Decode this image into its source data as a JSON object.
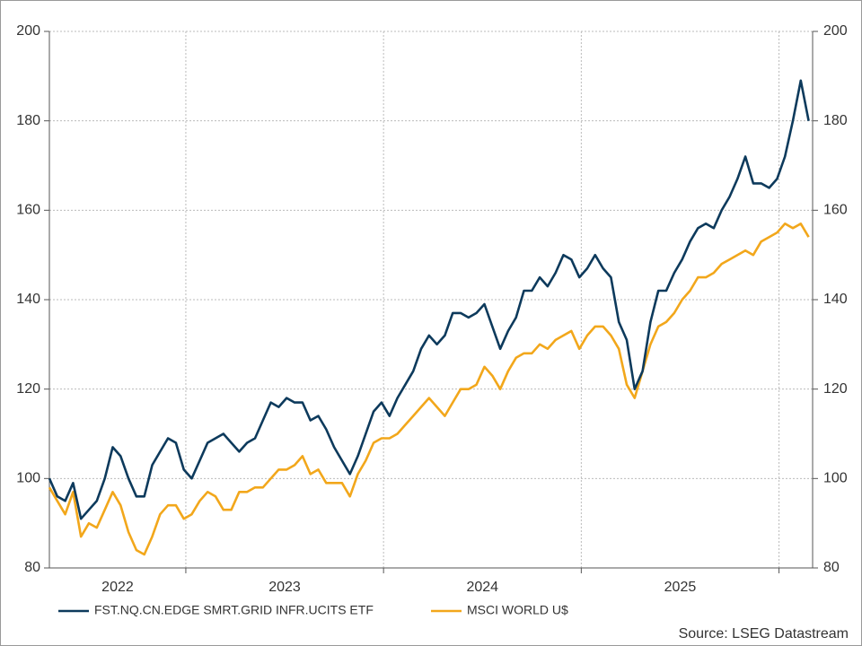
{
  "chart_data": {
    "type": "line",
    "x": [
      2022.31,
      2022.35,
      2022.39,
      2022.43,
      2022.47,
      2022.51,
      2022.55,
      2022.59,
      2022.63,
      2022.67,
      2022.71,
      2022.75,
      2022.79,
      2022.83,
      2022.87,
      2022.91,
      2022.95,
      2022.99,
      2023.03,
      2023.07,
      2023.11,
      2023.15,
      2023.19,
      2023.23,
      2023.27,
      2023.31,
      2023.35,
      2023.39,
      2023.43,
      2023.47,
      2023.51,
      2023.55,
      2023.59,
      2023.63,
      2023.67,
      2023.71,
      2023.75,
      2023.79,
      2023.83,
      2023.87,
      2023.91,
      2023.95,
      2023.99,
      2024.03,
      2024.07,
      2024.11,
      2024.15,
      2024.19,
      2024.23,
      2024.27,
      2024.31,
      2024.35,
      2024.39,
      2024.43,
      2024.47,
      2024.51,
      2024.55,
      2024.59,
      2024.63,
      2024.67,
      2024.71,
      2024.75,
      2024.79,
      2024.83,
      2024.87,
      2024.91,
      2024.95,
      2024.99,
      2025.03,
      2025.07,
      2025.11,
      2025.15,
      2025.19,
      2025.23,
      2025.27,
      2025.31,
      2025.35,
      2025.39,
      2025.43,
      2025.47,
      2025.51,
      2025.55,
      2025.59,
      2025.63,
      2025.67,
      2025.71,
      2025.75,
      2025.79,
      2025.83,
      2025.87,
      2025.91,
      2025.95,
      2025.99,
      2026.03,
      2026.07,
      2026.11,
      2026.15
    ],
    "series": [
      {
        "name": "FST.NQ.CN.EDGE SMRT.GRID INFR.UCITS ETF",
        "color": "#0d3a5c",
        "values": [
          100,
          96,
          95,
          99,
          91,
          93,
          95,
          100,
          107,
          105,
          100,
          96,
          96,
          103,
          106,
          109,
          108,
          102,
          100,
          104,
          108,
          109,
          110,
          108,
          106,
          108,
          109,
          113,
          117,
          116,
          118,
          117,
          117,
          113,
          114,
          111,
          107,
          104,
          101,
          105,
          110,
          115,
          117,
          114,
          118,
          121,
          124,
          129,
          132,
          130,
          132,
          137,
          137,
          136,
          137,
          139,
          134,
          129,
          133,
          136,
          142,
          142,
          145,
          143,
          146,
          150,
          149,
          145,
          147,
          150,
          147,
          145,
          135,
          131,
          120,
          124,
          135,
          142,
          142,
          146,
          149,
          153,
          156,
          157,
          156,
          160,
          163,
          167,
          172,
          166,
          166,
          165,
          167,
          172,
          180,
          189,
          180
        ]
      },
      {
        "name": "MSCI WORLD U$",
        "color": "#f2a71b",
        "values": [
          98,
          95,
          92,
          97,
          87,
          90,
          89,
          93,
          97,
          94,
          88,
          84,
          83,
          87,
          92,
          94,
          94,
          91,
          92,
          95,
          97,
          96,
          93,
          93,
          97,
          97,
          98,
          98,
          100,
          102,
          102,
          103,
          105,
          101,
          102,
          99,
          99,
          99,
          96,
          101,
          104,
          108,
          109,
          109,
          110,
          112,
          114,
          116,
          118,
          116,
          114,
          117,
          120,
          120,
          121,
          125,
          123,
          120,
          124,
          127,
          128,
          128,
          130,
          129,
          131,
          132,
          133,
          129,
          132,
          134,
          134,
          132,
          129,
          121,
          118,
          124,
          130,
          134,
          135,
          137,
          140,
          142,
          145,
          145,
          146,
          148,
          149,
          150,
          151,
          150,
          153,
          154,
          155,
          157,
          156,
          157,
          154
        ]
      }
    ],
    "xlim": [
      2022.31,
      2026.17
    ],
    "xticks": [
      2023,
      2024,
      2025,
      2026
    ],
    "xlabels": [
      2022,
      2023,
      2024,
      2025
    ],
    "ylim": [
      80,
      200
    ],
    "yticks": [
      80,
      100,
      120,
      140,
      160,
      180,
      200
    ],
    "y2lim": [
      80,
      200
    ],
    "y2ticks": [
      80,
      100,
      120,
      140,
      160,
      180,
      200
    ],
    "grid": true,
    "source": "Source: LSEG Datastream"
  }
}
